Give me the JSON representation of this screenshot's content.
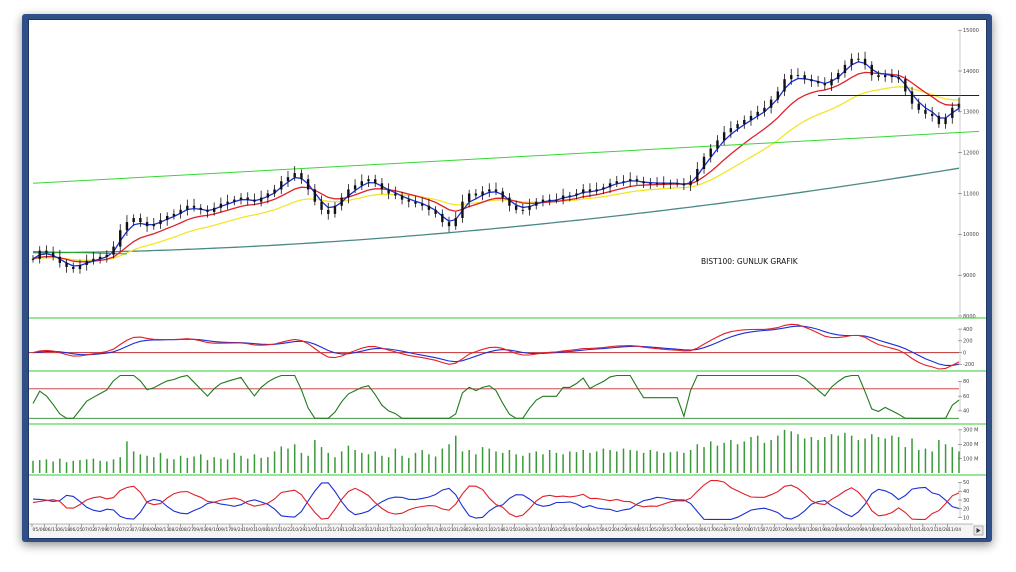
{
  "chart_data": [
    {
      "panel": "price",
      "type": "candlestick",
      "annotation": "BIST100: GUNLUK GRAFIK",
      "y_ticks": [
        8000,
        9000,
        10000,
        11000,
        12000,
        13000,
        14000,
        15000
      ],
      "ylim": [
        8000,
        15200
      ],
      "close": [
        9400,
        9600,
        9550,
        9450,
        9300,
        9200,
        9150,
        9250,
        9350,
        9400,
        9450,
        9500,
        9700,
        10100,
        10300,
        10400,
        10300,
        10200,
        10250,
        10350,
        10450,
        10500,
        10600,
        10700,
        10650,
        10600,
        10550,
        10650,
        10750,
        10800,
        10850,
        10900,
        10850,
        10800,
        10900,
        11000,
        11100,
        11300,
        11400,
        11500,
        11350,
        11100,
        10800,
        10600,
        10500,
        10700,
        10900,
        11100,
        11200,
        11300,
        11350,
        11250,
        11100,
        11000,
        10950,
        10850,
        10800,
        10750,
        10700,
        10600,
        10500,
        10300,
        10200,
        10400,
        10800,
        11000,
        10950,
        11050,
        11100,
        11050,
        10900,
        10700,
        10600,
        10600,
        10700,
        10800,
        10850,
        10850,
        10850,
        10950,
        10950,
        11000,
        11100,
        11050,
        11100,
        11150,
        11250,
        11300,
        11300,
        11350,
        11300,
        11250,
        11250,
        11250,
        11250,
        11250,
        11250,
        11200,
        11300,
        11600,
        11900,
        12100,
        12300,
        12500,
        12600,
        12700,
        12800,
        12900,
        13000,
        13100,
        13300,
        13500,
        13800,
        13900,
        13900,
        13800,
        13750,
        13700,
        13650,
        13800,
        13950,
        14150,
        14300,
        14300,
        14150,
        13900,
        13850,
        13900,
        13850,
        13800,
        13500,
        13200,
        13050,
        12950,
        12900,
        12700,
        12850,
        13100,
        13200
      ],
      "overlays": [
        {
          "name": "ema-short",
          "color": "#1a2fd6",
          "period": 5
        },
        {
          "name": "ema-mid",
          "color": "#e0202a",
          "period": 20
        },
        {
          "name": "ema-long",
          "color": "#f2e62a",
          "period": 50
        },
        {
          "name": "sma-200",
          "color": "#4a8a84",
          "period": 200
        }
      ],
      "trendlines": [
        {
          "name": "uptrend",
          "color": "#33d933",
          "from": [
            0,
            11250
          ],
          "to": [
            141,
            12520
          ]
        },
        {
          "name": "support",
          "color": "#22aa22",
          "from": [
            0,
            9580
          ],
          "to": [
            14,
            9520
          ]
        },
        {
          "name": "resistance",
          "color": "#222222",
          "from": [
            117,
            13400
          ],
          "to": [
            141,
            13400
          ]
        }
      ]
    },
    {
      "panel": "macd",
      "type": "line",
      "y_ticks": [
        -200,
        0,
        200,
        400
      ],
      "series": [
        {
          "name": "macd",
          "color": "#e0202a"
        },
        {
          "name": "signal",
          "color": "#1a2fd6"
        }
      ]
    },
    {
      "panel": "rsi",
      "type": "line",
      "y_ticks": [
        40,
        60,
        80
      ],
      "levels": [
        30,
        70
      ],
      "series": [
        {
          "name": "rsi",
          "color": "#1f7a1f"
        }
      ]
    },
    {
      "panel": "volume",
      "type": "bar",
      "y_ticks": [
        "100 M",
        "200 M",
        "300 M"
      ],
      "color": "#3a9a3a",
      "values": [
        85,
        90,
        95,
        80,
        100,
        75,
        85,
        90,
        95,
        100,
        85,
        80,
        95,
        110,
        220,
        150,
        130,
        120,
        110,
        140,
        100,
        95,
        120,
        105,
        115,
        130,
        90,
        110,
        100,
        95,
        140,
        120,
        100,
        130,
        105,
        110,
        150,
        185,
        170,
        200,
        140,
        120,
        230,
        180,
        140,
        110,
        150,
        190,
        160,
        140,
        130,
        150,
        120,
        110,
        170,
        120,
        105,
        140,
        160,
        130,
        115,
        170,
        200,
        260,
        150,
        160,
        130,
        180,
        170,
        150,
        140,
        160,
        130,
        120,
        140,
        150,
        130,
        160,
        140,
        130,
        150,
        145,
        160,
        140,
        150,
        170,
        160,
        150,
        170,
        160,
        155,
        140,
        160,
        150,
        140,
        145,
        150,
        140,
        160,
        200,
        180,
        220,
        190,
        210,
        230,
        200,
        220,
        250,
        260,
        210,
        230,
        260,
        300,
        290,
        270,
        240,
        250,
        230,
        250,
        270,
        260,
        280,
        260,
        230,
        240,
        270,
        250,
        240,
        260,
        250,
        180,
        240,
        160,
        170,
        150,
        230,
        200,
        180,
        150
      ]
    },
    {
      "panel": "dmi",
      "type": "line",
      "y_ticks": [
        10,
        20,
        30,
        40,
        50
      ],
      "series": [
        {
          "name": "di-plus",
          "color": "#e0202a"
        },
        {
          "name": "di-minus",
          "color": "#1a2fd6"
        }
      ]
    }
  ],
  "date_ticks": [
    "05/06",
    "06/11",
    "06/18",
    "06/25",
    "07/02",
    "07/09",
    "07/16",
    "07/23",
    "07/30",
    "08/06",
    "08/13",
    "08/20",
    "08/27",
    "09/03",
    "09/10",
    "09/17",
    "09/24",
    "10/01",
    "10/08",
    "10/15",
    "10/22",
    "10/29",
    "11/05",
    "11/12",
    "11/19",
    "11/26",
    "12/03",
    "12/10",
    "12/17",
    "12/24",
    "12/31",
    "01/07",
    "01/14",
    "01/21",
    "01/28",
    "02/04",
    "02/11",
    "02/18",
    "02/25",
    "03/04",
    "03/11",
    "03/18",
    "03/25",
    "04/01",
    "04/08",
    "04/15",
    "04/22",
    "04/29",
    "05/06",
    "05/13",
    "05/20",
    "05/27",
    "06/03",
    "06/10",
    "06/17",
    "06/24",
    "07/01",
    "07/08",
    "07/15",
    "07/22",
    "07/29",
    "08/05",
    "08/12",
    "08/19",
    "08/26",
    "09/02",
    "09/09",
    "09/16",
    "09/23",
    "09/30",
    "10/07",
    "10/14",
    "10/21",
    "10/28",
    "11/04"
  ],
  "scroll_icon": "scroll-right-icon",
  "colors": {
    "frame": "#2f4f86",
    "separator": "#33cc33",
    "level": "#c03030"
  }
}
